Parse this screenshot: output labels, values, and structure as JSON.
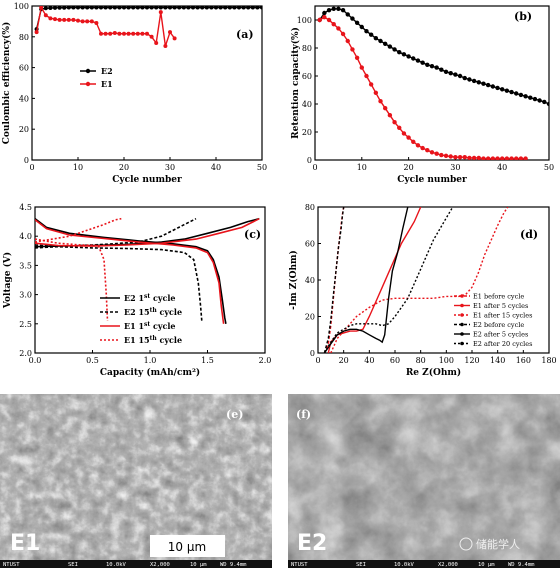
{
  "chart_data": [
    {
      "panel": "(a)",
      "type": "line",
      "xlabel": "Cycle number",
      "ylabel": "Coulombic efficiency(%)",
      "xlim": [
        0,
        50
      ],
      "ylim": [
        0,
        100
      ],
      "xticks": [
        0,
        10,
        20,
        30,
        40,
        50
      ],
      "yticks": [
        0,
        20,
        40,
        60,
        80,
        100
      ],
      "series": [
        {
          "name": "E2",
          "color": "#000000",
          "x": [
            1,
            2,
            3,
            4,
            5,
            6,
            7,
            8,
            9,
            10,
            11,
            12,
            13,
            14,
            15,
            16,
            17,
            18,
            19,
            20,
            21,
            22,
            23,
            24,
            25,
            26,
            27,
            28,
            29,
            30,
            31,
            32,
            33,
            34,
            35,
            36,
            37,
            38,
            39,
            40,
            41,
            42,
            43,
            44,
            45,
            46,
            47,
            48,
            49,
            50
          ],
          "y": [
            85,
            98,
            98.5,
            98.7,
            98.8,
            98.9,
            98.9,
            99,
            99,
            99,
            99,
            99,
            99,
            99,
            99,
            99,
            99,
            99,
            99,
            99,
            99,
            99,
            99,
            99,
            99,
            99,
            99,
            99,
            99,
            99,
            99,
            99,
            99,
            99,
            99,
            99,
            99,
            99,
            99,
            99,
            99,
            99,
            99,
            99,
            99,
            99,
            99,
            99,
            99,
            99
          ]
        },
        {
          "name": "E1",
          "color": "#e8141b",
          "x": [
            1,
            2,
            3,
            4,
            5,
            6,
            7,
            8,
            9,
            10,
            11,
            12,
            13,
            14,
            15,
            16,
            17,
            18,
            19,
            20,
            21,
            22,
            23,
            24,
            25,
            26,
            27,
            28,
            29,
            30,
            31
          ],
          "y": [
            83,
            99,
            94,
            92,
            91.5,
            91,
            91,
            91,
            91,
            90.5,
            90,
            90,
            90,
            89,
            82,
            82,
            82,
            82.5,
            82,
            82,
            82,
            82,
            82,
            82,
            82,
            80,
            76,
            96,
            74,
            83,
            79
          ]
        }
      ]
    },
    {
      "panel": "(b)",
      "type": "line",
      "xlabel": "Cycle number",
      "ylabel": "Retention capacity(%)",
      "xlim": [
        0,
        50
      ],
      "ylim": [
        0,
        110
      ],
      "xticks": [
        0,
        10,
        20,
        30,
        40,
        50
      ],
      "yticks": [
        0,
        20,
        40,
        60,
        80,
        100
      ],
      "series": [
        {
          "name": "black",
          "color": "#000000",
          "x": [
            1,
            2,
            3,
            4,
            5,
            6,
            7,
            8,
            9,
            10,
            11,
            12,
            13,
            14,
            15,
            16,
            17,
            18,
            19,
            20,
            21,
            22,
            23,
            24,
            25,
            26,
            27,
            28,
            29,
            30,
            31,
            32,
            33,
            34,
            35,
            36,
            37,
            38,
            39,
            40,
            41,
            42,
            43,
            44,
            45,
            46,
            47,
            48,
            49,
            50
          ],
          "y": [
            100,
            105,
            107,
            108,
            108,
            107,
            104,
            101,
            98,
            95,
            92,
            89.5,
            87,
            85,
            83,
            81,
            79,
            77,
            75.5,
            74,
            72.5,
            71,
            69.5,
            68,
            67,
            66,
            64.5,
            63,
            62,
            61,
            60,
            58.5,
            57.5,
            56.5,
            55.5,
            54.5,
            53.5,
            52.5,
            51.5,
            50.5,
            49.5,
            48.5,
            47.5,
            46.5,
            45.5,
            44.5,
            43.5,
            42.5,
            41.5,
            40
          ]
        },
        {
          "name": "red",
          "color": "#e8141b",
          "x": [
            1,
            2,
            3,
            4,
            5,
            6,
            7,
            8,
            9,
            10,
            11,
            12,
            13,
            14,
            15,
            16,
            17,
            18,
            19,
            20,
            21,
            22,
            23,
            24,
            25,
            26,
            27,
            28,
            29,
            30,
            31,
            32,
            33,
            34,
            35,
            36,
            37,
            38,
            39,
            40,
            41,
            42,
            43,
            44,
            45
          ],
          "y": [
            100,
            102,
            100,
            97,
            94,
            90,
            85,
            79,
            73,
            66,
            60,
            54,
            48,
            42,
            37,
            32,
            27,
            23,
            19,
            16,
            13,
            10.5,
            8.5,
            7,
            5.5,
            4.5,
            3.5,
            3,
            2.5,
            2,
            2,
            2,
            1.5,
            1.5,
            1.5,
            1,
            1,
            1,
            1,
            1,
            1,
            1,
            1,
            1,
            1
          ]
        }
      ]
    },
    {
      "panel": "(c)",
      "type": "line",
      "xlabel": "Capacity (mAh/cm²)",
      "ylabel": "Voltage (V)",
      "xlim": [
        0,
        2.0
      ],
      "ylim": [
        2.0,
        4.5
      ],
      "xticks": [
        0.0,
        0.5,
        1.0,
        1.5,
        2.0
      ],
      "yticks": [
        2.0,
        2.5,
        3.0,
        3.5,
        4.0,
        4.5
      ],
      "series": [
        {
          "name": "E2 1st cycle",
          "color": "#000000",
          "dash": "none",
          "x": [
            0,
            0.1,
            0.3,
            0.6,
            0.9,
            1.2,
            1.4,
            1.5,
            1.55,
            1.6,
            1.63,
            1.65,
            1.66
          ],
          "y": [
            4.3,
            4.15,
            4.05,
            3.98,
            3.92,
            3.87,
            3.82,
            3.75,
            3.6,
            3.3,
            2.9,
            2.6,
            2.5
          ]
        },
        {
          "name": "E2 1st cycle charge",
          "color": "#000000",
          "dash": "none",
          "x": [
            0,
            0.2,
            0.5,
            0.8,
            1.1,
            1.3,
            1.5,
            1.7,
            1.85,
            1.95
          ],
          "y": [
            3.82,
            3.83,
            3.84,
            3.86,
            3.9,
            3.95,
            4.05,
            4.15,
            4.25,
            4.3
          ]
        },
        {
          "name": "E2 15th cycle",
          "color": "#000000",
          "dash": "3,2",
          "x": [
            0,
            0.2,
            0.5,
            0.8,
            1.1,
            1.3,
            1.38,
            1.42,
            1.44,
            1.45
          ],
          "y": [
            3.85,
            3.82,
            3.8,
            3.79,
            3.77,
            3.72,
            3.6,
            3.2,
            2.8,
            2.55
          ]
        },
        {
          "name": "E2 15th cycle charge",
          "color": "#000000",
          "dash": "3,2",
          "x": [
            0,
            0.3,
            0.6,
            0.9,
            1.1,
            1.3,
            1.4
          ],
          "y": [
            3.8,
            3.83,
            3.86,
            3.9,
            4.0,
            4.2,
            4.3
          ]
        },
        {
          "name": "E1 1st cycle",
          "color": "#e8141b",
          "dash": "none",
          "x": [
            0,
            0.1,
            0.3,
            0.6,
            0.9,
            1.2,
            1.4,
            1.5,
            1.55,
            1.6,
            1.62,
            1.64
          ],
          "y": [
            4.28,
            4.13,
            4.02,
            3.96,
            3.9,
            3.85,
            3.8,
            3.72,
            3.55,
            3.2,
            2.8,
            2.5
          ]
        },
        {
          "name": "E1 1st cycle charge",
          "color": "#e8141b",
          "dash": "none",
          "x": [
            0,
            0.2,
            0.5,
            0.8,
            1.1,
            1.4,
            1.6,
            1.8,
            1.9,
            1.95
          ],
          "y": [
            3.88,
            3.84,
            3.83,
            3.85,
            3.88,
            3.95,
            4.05,
            4.15,
            4.25,
            4.3
          ]
        },
        {
          "name": "E1 15th cycle",
          "color": "#e8141b",
          "dash": "2,2",
          "x": [
            0,
            0.2,
            0.4,
            0.55,
            0.6,
            0.62,
            0.63
          ],
          "y": [
            3.95,
            3.88,
            3.85,
            3.84,
            3.6,
            3.0,
            2.55
          ]
        },
        {
          "name": "E1 15th cycle charge",
          "color": "#e8141b",
          "dash": "2,2",
          "x": [
            0,
            0.15,
            0.3,
            0.45,
            0.6,
            0.7,
            0.75
          ],
          "y": [
            3.9,
            3.95,
            4.0,
            4.1,
            4.2,
            4.28,
            4.3
          ]
        }
      ],
      "legend": [
        {
          "label": "E2 1",
          "sup": "st",
          "suffix": " cycle",
          "color": "#000000",
          "dash": "none"
        },
        {
          "label": "E2 15",
          "sup": "th",
          "suffix": " cycle",
          "color": "#000000",
          "dash": "3,2"
        },
        {
          "label": "E1 1",
          "sup": "st",
          "suffix": " cycle",
          "color": "#e8141b",
          "dash": "none"
        },
        {
          "label": "E1 15",
          "sup": "th",
          "suffix": " cycle",
          "color": "#e8141b",
          "dash": "2,2"
        }
      ]
    },
    {
      "panel": "(d)",
      "type": "line",
      "xlabel": "Re Z(Ohm)",
      "ylabel": "-Im Z(Ohm)",
      "xlim": [
        0,
        180
      ],
      "ylim": [
        0,
        80
      ],
      "xticks": [
        0,
        20,
        40,
        60,
        80,
        100,
        120,
        140,
        160,
        180
      ],
      "yticks": [
        0,
        20,
        40,
        60,
        80
      ],
      "series": [
        {
          "name": "E1 before cycle",
          "color": "#e8141b",
          "dash": "3,2",
          "x": [
            5,
            8,
            10,
            12,
            14,
            16,
            18,
            19,
            20,
            21
          ],
          "y": [
            0,
            5,
            15,
            30,
            45,
            58,
            70,
            76,
            80,
            80
          ]
        },
        {
          "name": "E1 after 5 cycles",
          "color": "#e8141b",
          "dash": "none",
          "x": [
            8,
            10,
            15,
            20,
            25,
            30,
            35,
            40,
            45,
            50,
            55,
            60,
            65,
            70,
            75,
            80
          ],
          "y": [
            0,
            6,
            10,
            11,
            12,
            12,
            13,
            20,
            28,
            36,
            44,
            52,
            60,
            66,
            72,
            80
          ]
        },
        {
          "name": "E1 after 15 cycles",
          "color": "#e8141b",
          "dash": "2,2",
          "x": [
            10,
            15,
            20,
            30,
            40,
            50,
            60,
            70,
            80,
            90,
            100,
            110,
            115,
            120,
            125,
            130,
            135,
            140,
            145,
            148
          ],
          "y": [
            0,
            8,
            12,
            20,
            25,
            29,
            30,
            30,
            30,
            30,
            31,
            31,
            32,
            36,
            44,
            54,
            62,
            70,
            77,
            80
          ]
        },
        {
          "name": "E2 before cycle",
          "color": "#000000",
          "dash": "3,2",
          "x": [
            5,
            8,
            10,
            12,
            14,
            16,
            18,
            19,
            20
          ],
          "y": [
            0,
            8,
            18,
            32,
            45,
            58,
            68,
            75,
            80
          ]
        },
        {
          "name": "E2 after 5 cycles",
          "color": "#000000",
          "dash": "none",
          "x": [
            5,
            10,
            15,
            20,
            25,
            30,
            35,
            40,
            45,
            48,
            50,
            52,
            55,
            58,
            62,
            66,
            70
          ],
          "y": [
            0,
            5,
            10,
            12,
            13,
            13,
            12,
            10,
            8,
            7,
            6,
            10,
            30,
            45,
            55,
            68,
            80
          ]
        },
        {
          "name": "E2 after 20 cycles",
          "color": "#000000",
          "dash": "2,2",
          "x": [
            5,
            10,
            15,
            20,
            25,
            30,
            35,
            40,
            45,
            50,
            55,
            60,
            65,
            70,
            75,
            80,
            85,
            90,
            95,
            100,
            105
          ],
          "y": [
            0,
            6,
            11,
            13,
            15,
            16,
            16,
            16,
            16,
            15,
            16,
            20,
            25,
            30,
            38,
            46,
            54,
            62,
            68,
            74,
            80
          ]
        }
      ],
      "legend": [
        "E1 before cycle",
        "E1 after 5 cycles",
        "E1 after 15 cycles",
        "E2 before cycle",
        "E2 after 5 cycles",
        "E2 after 20 cycles"
      ]
    }
  ],
  "legend_a": {
    "e2": "E2",
    "e1": "E1"
  },
  "panels": {
    "a": "(a)",
    "b": "(b)",
    "c": "(c)",
    "d": "(d)",
    "e": "(e)",
    "f": "(f)"
  },
  "sem": {
    "e": {
      "label": "E1",
      "scale": "10 μm",
      "footer": [
        "NTUST",
        "SEI",
        "10.0kV",
        "X2,000",
        "10 μm",
        "WD 9.4mm"
      ]
    },
    "f": {
      "label": "E2",
      "footer": [
        "NTUST",
        "SEI",
        "10.0kV",
        "X2,000",
        "10 μm",
        "WD 9.4mm"
      ]
    }
  },
  "watermark": "储能学人",
  "colors": {
    "black": "#000000",
    "red": "#e8141b"
  }
}
